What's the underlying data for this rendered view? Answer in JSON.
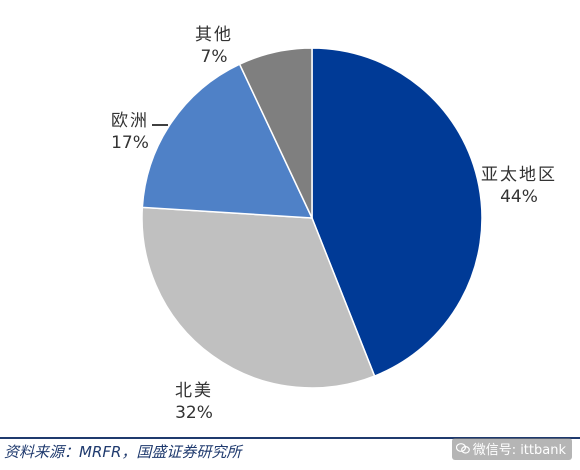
{
  "chart_data": {
    "type": "pie",
    "categories": [
      "亚太地区",
      "北美",
      "欧洲",
      "其他"
    ],
    "values": [
      44,
      32,
      17,
      7
    ],
    "labels": [
      "44%",
      "32%",
      "17%",
      "7%"
    ],
    "colors": [
      "#003a96",
      "#c0c0c0",
      "#4f81c7",
      "#7f7f7f"
    ],
    "start_angle_deg": 0,
    "direction": "clockwise",
    "legend": "none"
  },
  "footer": {
    "source": "资料来源：MRFR，国盛证券研究所",
    "watermark": "微信号: ittbank",
    "watermark_icon": "wechat-icon"
  }
}
